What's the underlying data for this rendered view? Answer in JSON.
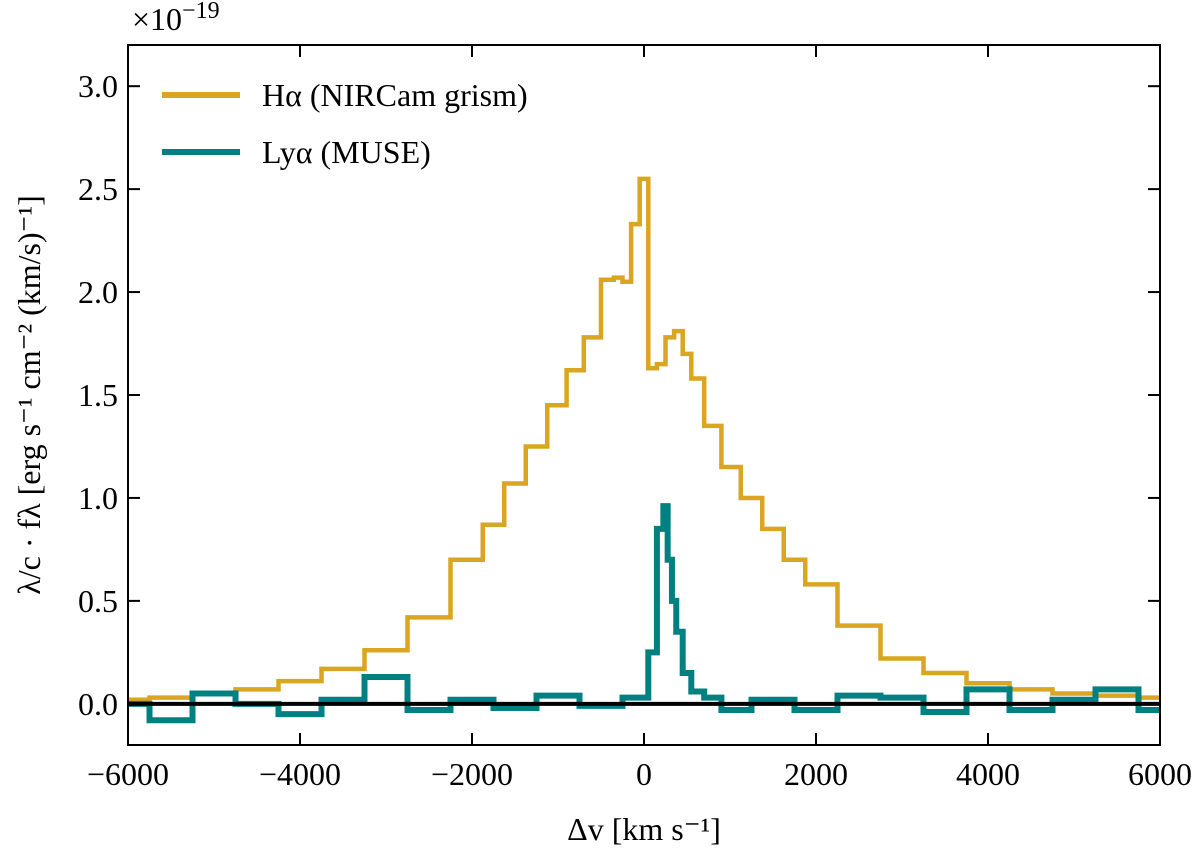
{
  "chart_data": {
    "type": "line",
    "drawstyle": "steps-mid",
    "y_offset_label": {
      "base": "×10",
      "exponent": "−19"
    },
    "xlabel": "Δv [km s⁻¹]",
    "ylabel": "λ/c · fλ [erg s⁻¹ cm⁻² (km/s)⁻¹]",
    "xlim": [
      -6000,
      6000
    ],
    "ylim": [
      -0.2,
      3.2
    ],
    "xticks": [
      {
        "value": -6000,
        "label": "−6000"
      },
      {
        "value": -4000,
        "label": "−4000"
      },
      {
        "value": -2000,
        "label": "−2000"
      },
      0,
      2000,
      4000,
      6000
    ],
    "yticks": [
      {
        "value": 0,
        "label": "0.0"
      },
      0.5,
      {
        "value": 1,
        "label": "1.0"
      },
      1.5,
      {
        "value": 2,
        "label": "2.0"
      },
      2.5,
      {
        "value": 3,
        "label": "3.0"
      }
    ],
    "hline": 0,
    "hline_color": "#000000",
    "legend": "upper left",
    "series": [
      {
        "name": "Hα (NIRCam grism)",
        "color": "#daa520",
        "x": [
          -6000,
          -5500,
          -5000,
          -4500,
          -4000,
          -3500,
          -3000,
          -2500,
          -2000,
          -1750,
          -1500,
          -1250,
          -1000,
          -800,
          -600,
          -400,
          -300,
          -200,
          -100,
          0,
          100,
          200,
          300,
          400,
          500,
          600,
          800,
          1000,
          1250,
          1500,
          1750,
          2000,
          2500,
          3000,
          3500,
          4000,
          4500,
          5000,
          5500,
          6000
        ],
        "values": [
          0.02,
          0.03,
          0.05,
          0.07,
          0.11,
          0.17,
          0.26,
          0.42,
          0.7,
          0.87,
          1.07,
          1.25,
          1.45,
          1.62,
          1.78,
          2.06,
          2.07,
          2.05,
          2.33,
          2.55,
          1.63,
          1.65,
          1.78,
          1.81,
          1.7,
          1.58,
          1.35,
          1.15,
          1.0,
          0.85,
          0.7,
          0.58,
          0.38,
          0.22,
          0.15,
          0.1,
          0.07,
          0.05,
          0.04,
          0.03
        ]
      },
      {
        "name": "Lyα (MUSE)",
        "color": "#008080",
        "x": [
          -6000,
          -5500,
          -5000,
          -4500,
          -4000,
          -3500,
          -3000,
          -2500,
          -2000,
          -1500,
          -1000,
          -500,
          0,
          100,
          200,
          250,
          300,
          350,
          400,
          500,
          600,
          800,
          1000,
          1500,
          2000,
          2500,
          3000,
          3500,
          4000,
          4500,
          5000,
          5500,
          6000
        ],
        "values": [
          0.0,
          -0.08,
          0.05,
          0.0,
          -0.05,
          0.02,
          0.13,
          -0.03,
          0.02,
          -0.02,
          0.04,
          -0.01,
          0.03,
          0.25,
          0.85,
          0.96,
          0.7,
          0.5,
          0.35,
          0.15,
          0.06,
          0.03,
          -0.03,
          0.02,
          -0.03,
          0.04,
          0.03,
          -0.04,
          0.07,
          -0.03,
          0.02,
          0.07,
          -0.03
        ]
      }
    ]
  }
}
